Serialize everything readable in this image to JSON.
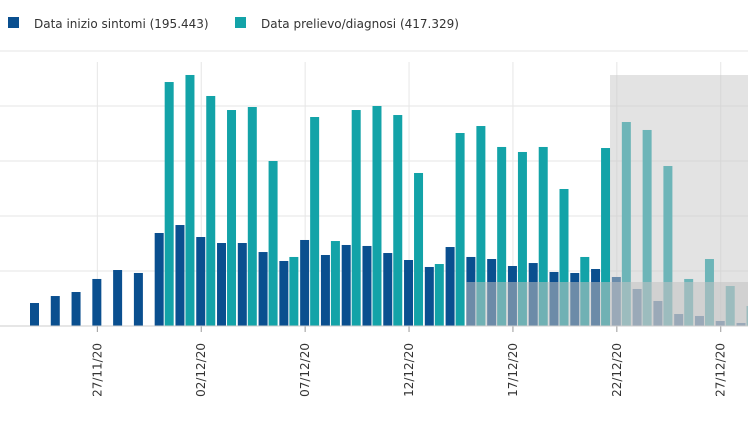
{
  "chart_data": {
    "type": "bar",
    "categories": [
      null,
      null,
      null,
      "27/11/20",
      null,
      null,
      null,
      null,
      "02/12/20",
      null,
      null,
      null,
      null,
      "07/12/20",
      null,
      null,
      null,
      null,
      "12/12/20",
      null,
      null,
      null,
      null,
      "17/12/20",
      null,
      null,
      null,
      null,
      "22/12/20",
      null,
      null,
      null,
      null,
      "27/12/20",
      null
    ],
    "series": [
      {
        "name": "Data inizio sintomi (195.443)",
        "color": "#0a4f8f",
        "values": [
          418,
          545,
          618,
          855,
          1018,
          964,
          1691,
          1836,
          1618,
          1509,
          1509,
          1345,
          1182,
          1564,
          1291,
          1473,
          1455,
          1327,
          1200,
          1073,
          1436,
          1255,
          1218,
          1091,
          1145,
          982,
          964,
          1036,
          891,
          673,
          455,
          218,
          182,
          91,
          55
        ]
      },
      {
        "name": "Data prelievo/diagnosi (417.329)",
        "color": "#13a3a8",
        "values": [
          0,
          0,
          0,
          0,
          0,
          0,
          4436,
          4564,
          4182,
          3927,
          3982,
          3000,
          1255,
          3800,
          1545,
          3927,
          4000,
          3836,
          2782,
          1127,
          3509,
          3636,
          3255,
          3164,
          3255,
          2491,
          1255,
          3236,
          3709,
          3564,
          2909,
          855,
          1218,
          727,
          364
        ]
      }
    ],
    "ylim": [
      0,
      5000
    ],
    "yticks": [
      0,
      1000,
      2000,
      3000,
      4000,
      5000
    ],
    "grid": true
  }
}
